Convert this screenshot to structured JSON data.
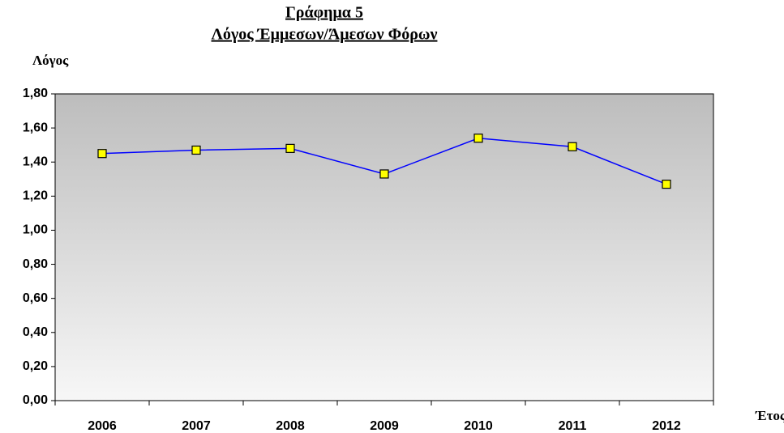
{
  "chart_data": {
    "type": "line",
    "title": "Γράφημα 5",
    "subtitle": "Λόγος Έμμεσων/Άμεσων Φόρων",
    "y_label": "Λόγος",
    "x_label": "Έτος",
    "categories": [
      "2006",
      "2007",
      "2008",
      "2009",
      "2010",
      "2011",
      "2012"
    ],
    "series": [
      {
        "name": "Λόγος",
        "color": "#0000ff",
        "marker_color": "#ffff00",
        "values": [
          1.45,
          1.47,
          1.48,
          1.33,
          1.54,
          1.49,
          1.27
        ]
      }
    ],
    "ylim": [
      0,
      1.8
    ],
    "yticks": [
      {
        "value": 0,
        "label": "0,00"
      },
      {
        "value": 0.2,
        "label": "0,20"
      },
      {
        "value": 0.4,
        "label": "0,40"
      },
      {
        "value": 0.6,
        "label": "0,60"
      },
      {
        "value": 0.8,
        "label": "0,80"
      },
      {
        "value": 1.0,
        "label": "1,00"
      },
      {
        "value": 1.2,
        "label": "1,20"
      },
      {
        "value": 1.4,
        "label": "1,40"
      },
      {
        "value": 1.6,
        "label": "1,60"
      },
      {
        "value": 1.8,
        "label": "1,80"
      }
    ],
    "legend": false
  }
}
